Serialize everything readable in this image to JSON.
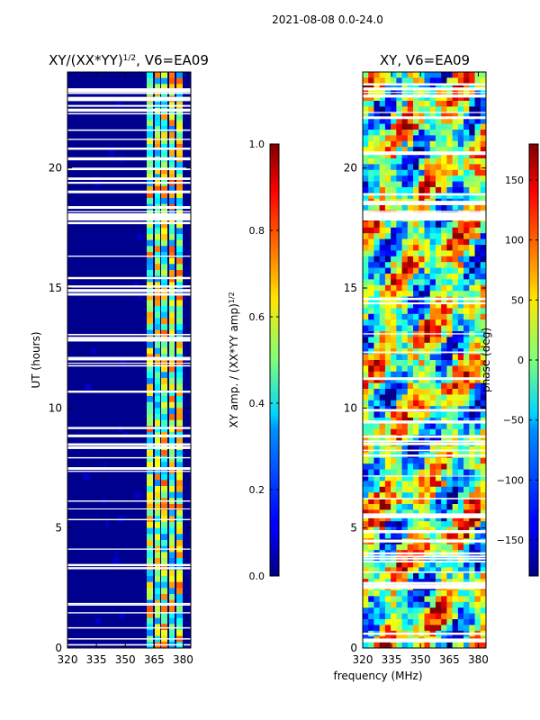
{
  "suptitle": "2021-08-08 0.0-24.0",
  "chart_data": [
    {
      "type": "heatmap",
      "title_prefix": "XY/(XX*YY)",
      "title_exponent": "1/2",
      "title_suffix": ", V6=EA09",
      "xlabel": "",
      "ylabel": "UT (hours)",
      "xlim": [
        320,
        384
      ],
      "ylim": [
        0,
        24
      ],
      "xticks": [
        320,
        335,
        350,
        365,
        380
      ],
      "yticks": [
        0,
        5,
        10,
        15,
        20
      ],
      "colorbar": {
        "label_prefix": "XY amp. / (XX*YY amp)",
        "label_exponent": "1/2",
        "range": [
          0.0,
          1.0
        ],
        "ticks": [
          "0.0",
          "0.2",
          "0.4",
          "0.6",
          "0.8",
          "1.0"
        ],
        "tick_values": [
          0.0,
          0.2,
          0.4,
          0.6,
          0.8,
          1.0
        ],
        "colormap": "jet"
      }
    },
    {
      "type": "heatmap",
      "title": "XY, V6=EA09",
      "xlabel": "frequency (MHz)",
      "ylabel": "",
      "xlim": [
        320,
        384
      ],
      "ylim": [
        0,
        24
      ],
      "xticks": [
        320,
        335,
        350,
        365,
        380
      ],
      "yticks": [
        0,
        5,
        10,
        15,
        20
      ],
      "colorbar": {
        "label": "phase (deg)",
        "range": [
          -180,
          180
        ],
        "ticks": [
          "150",
          "100",
          "50",
          "0",
          "−50",
          "−100",
          "−150"
        ],
        "tick_values": [
          150,
          100,
          50,
          0,
          -50,
          -100,
          -150
        ],
        "colormap": "jet"
      }
    }
  ]
}
